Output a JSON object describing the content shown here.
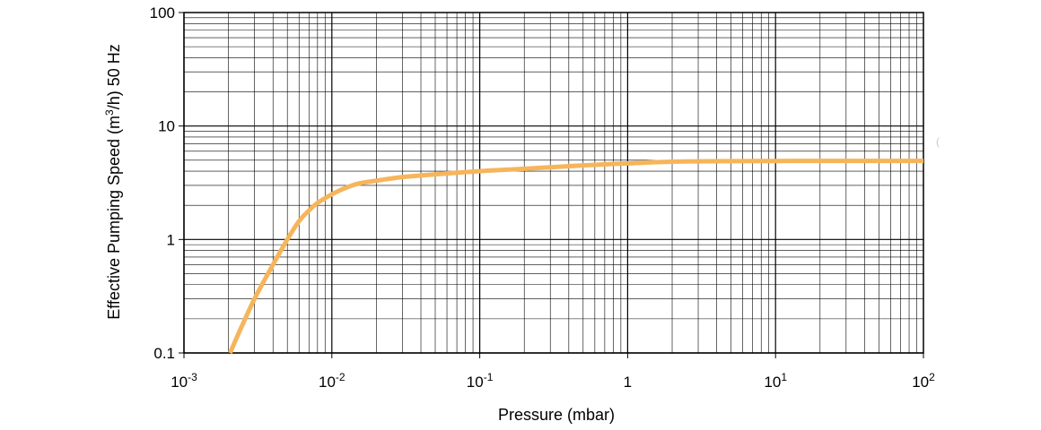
{
  "chart_data": {
    "type": "line",
    "title": "",
    "xlabel": "Pressure (mbar)",
    "ylabel_parts": [
      "Effective Pumping Speed (m",
      "3",
      "/h) 50 Hz"
    ],
    "xscale": "log",
    "yscale": "log",
    "xlim": [
      0.001,
      100
    ],
    "ylim": [
      0.1,
      100
    ],
    "grid": true,
    "legend": "none",
    "x_tick_labels": [
      {
        "value": 0.001,
        "base": "10",
        "exp": "-3"
      },
      {
        "value": 0.01,
        "base": "10",
        "exp": "-2"
      },
      {
        "value": 0.1,
        "base": "10",
        "exp": "-1"
      },
      {
        "value": 1,
        "base": "1",
        "exp": ""
      },
      {
        "value": 10,
        "base": "10",
        "exp": "1"
      },
      {
        "value": 100,
        "base": "10",
        "exp": "2"
      }
    ],
    "y_tick_labels": [
      {
        "value": 0.1,
        "text": "0.1"
      },
      {
        "value": 1,
        "text": "1"
      },
      {
        "value": 10,
        "text": "10"
      },
      {
        "value": 100,
        "text": "100"
      }
    ],
    "series": [
      {
        "color": "#F6B55B",
        "x": [
          0.00205,
          0.0025,
          0.003,
          0.004,
          0.005,
          0.006,
          0.007,
          0.008,
          0.01,
          0.012,
          0.015,
          0.02,
          0.03,
          0.05,
          0.1,
          0.2,
          0.5,
          1,
          2,
          5,
          10,
          20,
          50,
          100
        ],
        "y": [
          0.1,
          0.18,
          0.3,
          0.6,
          1.0,
          1.45,
          1.8,
          2.1,
          2.5,
          2.8,
          3.1,
          3.3,
          3.55,
          3.75,
          4.0,
          4.2,
          4.5,
          4.68,
          4.85,
          4.9,
          4.92,
          4.93,
          4.93,
          4.93
        ]
      }
    ]
  },
  "edge_mark": "("
}
